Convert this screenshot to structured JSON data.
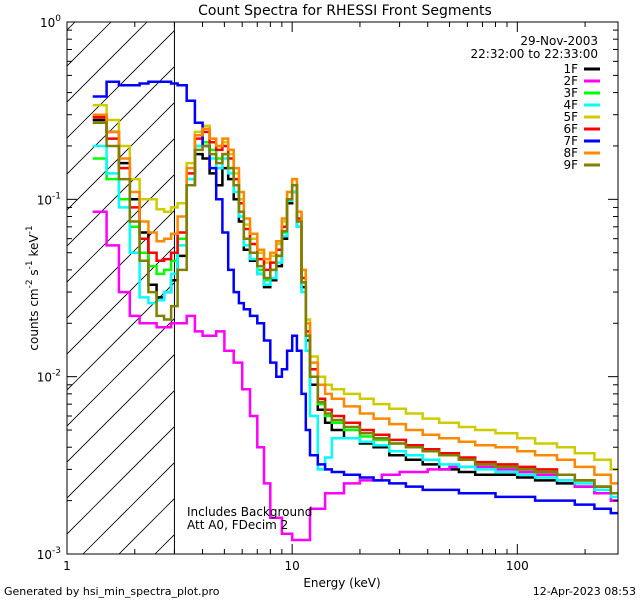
{
  "chart_data": {
    "type": "line",
    "title": "Count Spectra for RHESSI Front Segments",
    "xlabel": "Energy (keV)",
    "ylabel_base": "counts cm",
    "ylabel_sup1": "-2",
    "ylabel_mid": " s",
    "ylabel_sup2": "-1",
    "ylabel_end": " keV",
    "ylabel_sup3": "-1",
    "x_scale": "log",
    "y_scale": "log",
    "xlim": [
      1,
      280
    ],
    "ylim": [
      0.001,
      1
    ],
    "grid": false,
    "legend_position": "top-right",
    "date": "29-Nov-2003",
    "time_range": "22:32:00 to 22:33:00",
    "x_ticks": [
      {
        "value": 1,
        "label": "1"
      },
      {
        "value": 10,
        "label": "10"
      },
      {
        "value": 100,
        "label": "100"
      }
    ],
    "y_ticks": [
      {
        "value": 1,
        "base": "10",
        "exp": "0"
      },
      {
        "value": 0.1,
        "base": "10",
        "exp": "-1"
      },
      {
        "value": 0.01,
        "base": "10",
        "exp": "-2"
      },
      {
        "value": 0.001,
        "base": "10",
        "exp": "-3"
      }
    ],
    "attenuator_cutoff_kev": 3,
    "annotations": [
      "Includes Background",
      "Att A0, FDecim 2"
    ],
    "footer_left": "Generated by hsi_min_spectra_plot.pro",
    "footer_right": "12-Apr-2023 08:53",
    "series": [
      {
        "name": "1F",
        "color": "#000000",
        "x": [
          1.3,
          1.5,
          1.7,
          1.9,
          2.1,
          2.3,
          2.5,
          2.7,
          2.9,
          3.1,
          3.4,
          3.7,
          4.0,
          4.3,
          4.6,
          4.9,
          5.2,
          5.5,
          5.8,
          6.1,
          6.5,
          7.0,
          7.5,
          8.0,
          8.5,
          9.0,
          9.5,
          10.0,
          10.5,
          11.0,
          11.5,
          12.0,
          13,
          14,
          15,
          17,
          20,
          23,
          27,
          32,
          38,
          45,
          55,
          65,
          80,
          100,
          120,
          150,
          180,
          220,
          260
        ],
        "y": [
          0.28,
          0.24,
          0.16,
          0.1,
          0.065,
          0.033,
          0.028,
          0.03,
          0.035,
          0.048,
          0.12,
          0.18,
          0.17,
          0.14,
          0.12,
          0.15,
          0.13,
          0.1,
          0.075,
          0.052,
          0.045,
          0.038,
          0.032,
          0.035,
          0.042,
          0.06,
          0.095,
          0.11,
          0.07,
          0.032,
          0.016,
          0.009,
          0.0065,
          0.0055,
          0.005,
          0.0045,
          0.0042,
          0.004,
          0.0036,
          0.0034,
          0.0032,
          0.003,
          0.0029,
          0.0028,
          0.0028,
          0.0027,
          0.0026,
          0.0025,
          0.0024,
          0.0022,
          0.002
        ]
      },
      {
        "name": "2F",
        "color": "#ff00ff",
        "x": [
          1.3,
          1.5,
          1.7,
          1.9,
          2.1,
          2.3,
          2.5,
          2.7,
          2.9,
          3.1,
          3.4,
          3.7,
          4.0,
          4.3,
          4.6,
          5.0,
          5.5,
          6.0,
          6.5,
          7.0,
          7.5,
          8.0,
          9.0,
          10.0,
          12,
          14,
          17,
          20,
          25,
          30,
          40,
          50,
          60,
          80,
          100,
          120,
          150,
          180,
          220,
          260
        ],
        "y": [
          0.085,
          0.055,
          0.03,
          0.022,
          0.02,
          0.02,
          0.019,
          0.019,
          0.02,
          0.02,
          0.022,
          0.018,
          0.017,
          0.017,
          0.018,
          0.014,
          0.012,
          0.0085,
          0.006,
          0.004,
          0.0025,
          0.0016,
          0.0013,
          0.0012,
          0.0018,
          0.0022,
          0.0025,
          0.0026,
          0.0028,
          0.0029,
          0.003,
          0.0031,
          0.0031,
          0.003,
          0.0029,
          0.0028,
          0.0026,
          0.0024,
          0.0022,
          0.002
        ]
      },
      {
        "name": "3F",
        "color": "#00ff00",
        "x": [
          1.3,
          1.5,
          1.7,
          1.9,
          2.1,
          2.3,
          2.5,
          2.7,
          2.9,
          3.1,
          3.4,
          3.7,
          4.0,
          4.3,
          4.6,
          4.9,
          5.2,
          5.5,
          5.8,
          6.1,
          6.5,
          7.0,
          7.5,
          8.0,
          8.5,
          9.0,
          9.5,
          10.0,
          10.5,
          11.0,
          11.5,
          12.0,
          13,
          14,
          15,
          17,
          20,
          23,
          27,
          32,
          38,
          45,
          55,
          65,
          80,
          100,
          120,
          150,
          180,
          220,
          260
        ],
        "y": [
          0.17,
          0.13,
          0.1,
          0.07,
          0.05,
          0.042,
          0.038,
          0.04,
          0.045,
          0.06,
          0.13,
          0.2,
          0.21,
          0.19,
          0.17,
          0.18,
          0.15,
          0.12,
          0.085,
          0.06,
          0.05,
          0.04,
          0.035,
          0.04,
          0.048,
          0.065,
          0.1,
          0.12,
          0.075,
          0.034,
          0.017,
          0.01,
          0.007,
          0.006,
          0.0055,
          0.005,
          0.0046,
          0.0044,
          0.0042,
          0.004,
          0.0038,
          0.0036,
          0.0034,
          0.0032,
          0.0031,
          0.003,
          0.0029,
          0.0028,
          0.0026,
          0.0024,
          0.0022
        ]
      },
      {
        "name": "4F",
        "color": "#00ffff",
        "x": [
          1.3,
          1.5,
          1.7,
          1.9,
          2.1,
          2.3,
          2.5,
          2.7,
          2.9,
          3.1,
          3.4,
          3.7,
          4.0,
          4.3,
          4.6,
          4.9,
          5.2,
          5.5,
          5.8,
          6.1,
          6.5,
          7.0,
          7.5,
          8.0,
          8.5,
          9.0,
          9.5,
          10.0,
          10.5,
          11.0,
          11.5,
          12.0,
          13,
          14,
          15,
          17,
          20,
          23,
          27,
          32,
          38,
          45,
          55,
          65,
          80,
          100,
          120,
          150,
          180,
          220,
          260
        ],
        "y": [
          0.2,
          0.14,
          0.09,
          0.05,
          0.028,
          0.026,
          0.027,
          0.03,
          0.038,
          0.055,
          0.13,
          0.2,
          0.2,
          0.17,
          0.15,
          0.17,
          0.14,
          0.11,
          0.08,
          0.055,
          0.046,
          0.038,
          0.033,
          0.036,
          0.044,
          0.062,
          0.098,
          0.11,
          0.07,
          0.03,
          0.014,
          0.006,
          0.003,
          0.0035,
          0.0045,
          0.0045,
          0.0043,
          0.0041,
          0.0038,
          0.0036,
          0.0034,
          0.0032,
          0.0031,
          0.003,
          0.0029,
          0.0028,
          0.0027,
          0.0026,
          0.0025,
          0.0023,
          0.0021
        ]
      },
      {
        "name": "5F",
        "color": "#cccc00",
        "x": [
          1.3,
          1.5,
          1.7,
          1.9,
          2.1,
          2.3,
          2.5,
          2.7,
          2.9,
          3.1,
          3.4,
          3.7,
          4.0,
          4.3,
          4.6,
          4.9,
          5.2,
          5.5,
          5.8,
          6.1,
          6.5,
          7.0,
          7.5,
          8.0,
          8.5,
          9.0,
          9.5,
          10.0,
          10.5,
          11.0,
          11.5,
          12.0,
          13,
          14,
          15,
          17,
          20,
          23,
          27,
          32,
          38,
          45,
          55,
          65,
          80,
          100,
          120,
          150,
          180,
          220,
          260
        ],
        "y": [
          0.34,
          0.28,
          0.2,
          0.13,
          0.1,
          0.1,
          0.088,
          0.085,
          0.09,
          0.095,
          0.16,
          0.24,
          0.26,
          0.22,
          0.2,
          0.21,
          0.18,
          0.14,
          0.1,
          0.072,
          0.06,
          0.05,
          0.044,
          0.048,
          0.056,
          0.075,
          0.11,
          0.13,
          0.085,
          0.04,
          0.021,
          0.013,
          0.01,
          0.009,
          0.0085,
          0.008,
          0.0075,
          0.007,
          0.0066,
          0.0062,
          0.0058,
          0.0055,
          0.0052,
          0.005,
          0.0048,
          0.0045,
          0.0042,
          0.004,
          0.0037,
          0.0034,
          0.003
        ]
      },
      {
        "name": "6F",
        "color": "#ff0000",
        "x": [
          1.3,
          1.5,
          1.7,
          1.9,
          2.1,
          2.3,
          2.5,
          2.7,
          2.9,
          3.1,
          3.4,
          3.7,
          4.0,
          4.3,
          4.6,
          4.9,
          5.2,
          5.5,
          5.8,
          6.1,
          6.5,
          7.0,
          7.5,
          8.0,
          8.5,
          9.0,
          9.5,
          10.0,
          10.5,
          11.0,
          11.5,
          12.0,
          13,
          14,
          15,
          17,
          20,
          23,
          27,
          32,
          38,
          45,
          55,
          65,
          80,
          100,
          120,
          150,
          180,
          220,
          260
        ],
        "y": [
          0.29,
          0.22,
          0.15,
          0.09,
          0.06,
          0.05,
          0.045,
          0.046,
          0.05,
          0.065,
          0.14,
          0.22,
          0.24,
          0.21,
          0.19,
          0.2,
          0.17,
          0.13,
          0.095,
          0.068,
          0.056,
          0.046,
          0.04,
          0.044,
          0.052,
          0.07,
          0.1,
          0.12,
          0.078,
          0.036,
          0.018,
          0.011,
          0.0075,
          0.0065,
          0.006,
          0.0055,
          0.005,
          0.0047,
          0.0044,
          0.0041,
          0.0039,
          0.0037,
          0.0035,
          0.0033,
          0.0032,
          0.0031,
          0.003,
          0.0028,
          0.0026,
          0.0024,
          0.0022
        ]
      },
      {
        "name": "7F",
        "color": "#0000ff",
        "x": [
          1.3,
          1.5,
          1.7,
          1.9,
          2.1,
          2.3,
          2.5,
          2.7,
          2.9,
          3.1,
          3.4,
          3.7,
          4.0,
          4.3,
          4.6,
          4.9,
          5.2,
          5.5,
          5.8,
          6.1,
          6.5,
          7.0,
          7.5,
          8.0,
          8.5,
          9.0,
          9.5,
          10.0,
          10.5,
          11.0,
          11.5,
          12.0,
          13,
          14,
          15,
          17,
          20,
          23,
          27,
          32,
          38,
          45,
          55,
          65,
          80,
          100,
          120,
          150,
          180,
          220,
          260
        ],
        "y": [
          0.38,
          0.46,
          0.44,
          0.44,
          0.45,
          0.46,
          0.46,
          0.46,
          0.45,
          0.44,
          0.36,
          0.27,
          0.2,
          0.15,
          0.1,
          0.065,
          0.04,
          0.03,
          0.026,
          0.024,
          0.022,
          0.02,
          0.016,
          0.012,
          0.01,
          0.011,
          0.014,
          0.017,
          0.014,
          0.008,
          0.005,
          0.0036,
          0.0032,
          0.003,
          0.0029,
          0.0028,
          0.0027,
          0.0026,
          0.0025,
          0.0024,
          0.0023,
          0.0023,
          0.0022,
          0.0022,
          0.0021,
          0.0021,
          0.002,
          0.002,
          0.0019,
          0.0018,
          0.0017
        ]
      },
      {
        "name": "8F",
        "color": "#ff8800",
        "x": [
          1.3,
          1.5,
          1.7,
          1.9,
          2.1,
          2.3,
          2.5,
          2.7,
          2.9,
          3.1,
          3.4,
          3.7,
          4.0,
          4.3,
          4.6,
          4.9,
          5.2,
          5.5,
          5.8,
          6.1,
          6.5,
          7.0,
          7.5,
          8.0,
          8.5,
          9.0,
          9.5,
          10.0,
          10.5,
          11.0,
          11.5,
          12.0,
          13,
          14,
          15,
          17,
          20,
          23,
          27,
          32,
          38,
          45,
          55,
          65,
          80,
          100,
          120,
          150,
          180,
          220,
          260
        ],
        "y": [
          0.3,
          0.24,
          0.17,
          0.11,
          0.075,
          0.065,
          0.058,
          0.06,
          0.064,
          0.08,
          0.15,
          0.23,
          0.25,
          0.22,
          0.2,
          0.22,
          0.19,
          0.15,
          0.11,
          0.078,
          0.064,
          0.052,
          0.046,
          0.05,
          0.058,
          0.078,
          0.11,
          0.13,
          0.085,
          0.04,
          0.02,
          0.012,
          0.009,
          0.008,
          0.0075,
          0.0068,
          0.0062,
          0.0058,
          0.0054,
          0.005,
          0.0047,
          0.0045,
          0.0043,
          0.0041,
          0.004,
          0.0038,
          0.0036,
          0.0034,
          0.0031,
          0.0028,
          0.0025
        ]
      },
      {
        "name": "9F",
        "color": "#808000",
        "x": [
          1.3,
          1.5,
          1.7,
          1.9,
          2.1,
          2.3,
          2.5,
          2.7,
          2.9,
          3.1,
          3.4,
          3.7,
          4.0,
          4.3,
          4.6,
          4.9,
          5.2,
          5.5,
          5.8,
          6.1,
          6.5,
          7.0,
          7.5,
          8.0,
          8.5,
          9.0,
          9.5,
          10.0,
          10.5,
          11.0,
          11.5,
          12.0,
          13,
          14,
          15,
          17,
          20,
          23,
          27,
          32,
          38,
          45,
          55,
          65,
          80,
          100,
          120,
          150,
          180,
          220,
          260
        ],
        "y": [
          0.27,
          0.2,
          0.13,
          0.075,
          0.045,
          0.03,
          0.022,
          0.021,
          0.025,
          0.04,
          0.12,
          0.19,
          0.2,
          0.18,
          0.16,
          0.18,
          0.15,
          0.12,
          0.085,
          0.06,
          0.05,
          0.042,
          0.036,
          0.04,
          0.048,
          0.066,
          0.1,
          0.12,
          0.075,
          0.034,
          0.017,
          0.01,
          0.0072,
          0.0062,
          0.0057,
          0.0052,
          0.0048,
          0.0045,
          0.0042,
          0.004,
          0.0038,
          0.0036,
          0.0034,
          0.0032,
          0.0031,
          0.003,
          0.0029,
          0.0028,
          0.0026,
          0.0024,
          0.0022
        ]
      }
    ]
  }
}
